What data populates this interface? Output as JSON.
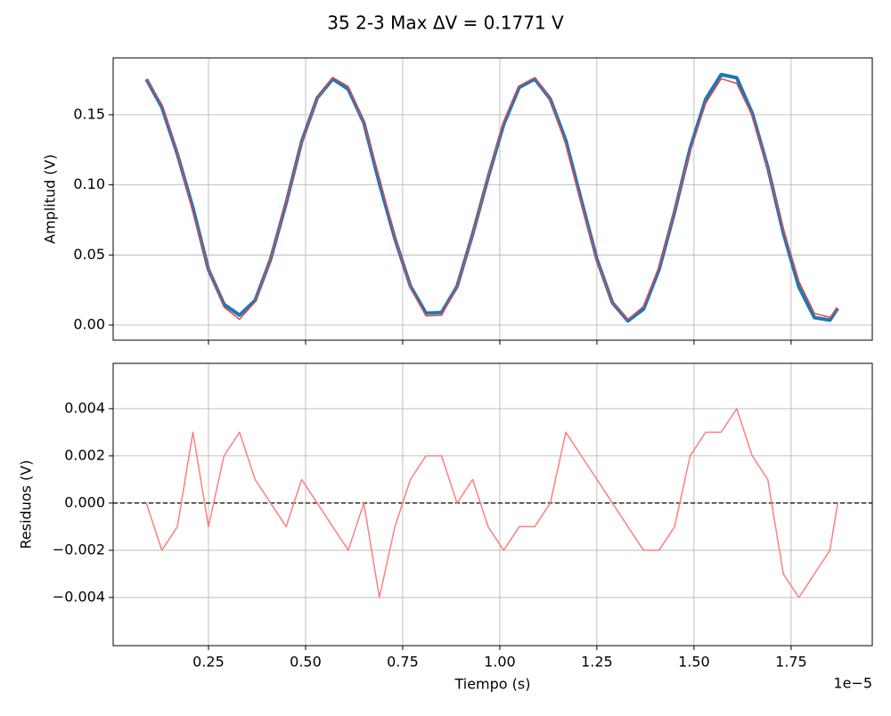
{
  "title": "35 2-3 Max ΔV = 0.1771 V",
  "chart_data": [
    {
      "type": "line",
      "ylabel": "Amplitud (V)",
      "x": [
        0.09,
        0.13,
        0.17,
        0.21,
        0.25,
        0.29,
        0.33,
        0.37,
        0.41,
        0.45,
        0.49,
        0.53,
        0.57,
        0.61,
        0.65,
        0.69,
        0.73,
        0.77,
        0.81,
        0.85,
        0.89,
        0.93,
        0.97,
        1.01,
        1.05,
        1.09,
        1.13,
        1.17,
        1.21,
        1.25,
        1.29,
        1.33,
        1.37,
        1.41,
        1.45,
        1.49,
        1.53,
        1.57,
        1.61,
        1.65,
        1.69,
        1.73,
        1.77,
        1.81,
        1.85,
        1.87
      ],
      "series": [
        {
          "color": "#1f77b4",
          "width": 4,
          "values": [
            0.1754,
            0.1554,
            0.1219,
            0.0835,
            0.0396,
            0.0148,
            0.0071,
            0.0175,
            0.047,
            0.0871,
            0.1309,
            0.162,
            0.1756,
            0.1682,
            0.1443,
            0.1012,
            0.0616,
            0.0277,
            0.0085,
            0.0089,
            0.0276,
            0.0647,
            0.1054,
            0.1432,
            0.1696,
            0.1755,
            0.1613,
            0.1317,
            0.0889,
            0.047,
            0.0159,
            0.003,
            0.0113,
            0.0395,
            0.0807,
            0.126,
            0.1611,
            0.1787,
            0.1764,
            0.1512,
            0.1125,
            0.0657,
            0.0272,
            0.0053,
            0.0035,
            0.012
          ]
        },
        {
          "color": "#e0474c",
          "width": 1.5,
          "values": [
            0.1754,
            0.1574,
            0.1229,
            0.0805,
            0.0406,
            0.0128,
            0.0041,
            0.0165,
            0.047,
            0.0881,
            0.1299,
            0.162,
            0.1766,
            0.1702,
            0.1443,
            0.1052,
            0.0626,
            0.0267,
            0.0065,
            0.0069,
            0.0276,
            0.0637,
            0.1064,
            0.1452,
            0.1706,
            0.1765,
            0.1613,
            0.1287,
            0.0869,
            0.046,
            0.0159,
            0.004,
            0.0133,
            0.0415,
            0.0817,
            0.124,
            0.1581,
            0.1757,
            0.1724,
            0.1492,
            0.1115,
            0.0687,
            0.0312,
            0.0083,
            0.0055,
            0.012
          ]
        }
      ],
      "xlim": [
        0.0046,
        1.959
      ],
      "xticks": [
        0.25,
        0.5,
        0.75,
        1.0,
        1.25,
        1.5,
        1.75
      ],
      "ylim": [
        -0.0108,
        0.1906
      ],
      "yticks": [
        {
          "value": 0,
          "label": "0.00"
        },
        0.05,
        {
          "value": 0.1,
          "label": "0.10"
        },
        0.15
      ],
      "grid": true
    },
    {
      "type": "line",
      "ylabel": "Residuos (V)",
      "xlabel": "Tiempo (s)",
      "x_offset": "1e−5",
      "x": [
        0.09,
        0.13,
        0.17,
        0.21,
        0.25,
        0.29,
        0.33,
        0.37,
        0.41,
        0.45,
        0.49,
        0.53,
        0.57,
        0.61,
        0.65,
        0.69,
        0.73,
        0.77,
        0.81,
        0.85,
        0.89,
        0.93,
        0.97,
        1.01,
        1.05,
        1.09,
        1.13,
        1.17,
        1.21,
        1.25,
        1.29,
        1.33,
        1.37,
        1.41,
        1.45,
        1.49,
        1.53,
        1.57,
        1.61,
        1.65,
        1.69,
        1.73,
        1.77,
        1.81,
        1.85,
        1.87
      ],
      "series": [
        {
          "color": "#ff7f7f",
          "width": 1.5,
          "values": [
            0,
            -0.002,
            -0.001,
            0.003,
            -0.001,
            0.002,
            0.003,
            0.001,
            0,
            -0.001,
            0.001,
            0,
            -0.001,
            -0.002,
            0,
            -0.004,
            -0.001,
            0.001,
            0.002,
            0.002,
            0,
            0.001,
            -0.001,
            -0.002,
            -0.001,
            -0.001,
            0,
            0.003,
            0.002,
            0.001,
            0,
            -0.001,
            -0.002,
            -0.002,
            -0.001,
            0.002,
            0.003,
            0.003,
            0.004,
            0.002,
            0.001,
            -0.003,
            -0.004,
            -0.003,
            -0.002,
            0
          ]
        }
      ],
      "hline": 0,
      "xlim": [
        0.0046,
        1.959
      ],
      "xticks": [
        0.25,
        {
          "value": 0.5,
          "label": "0.50"
        },
        0.75,
        {
          "value": 1.0,
          "label": "1.00"
        },
        {
          "value": 1.25,
          "label": "1.25"
        },
        {
          "value": 1.5,
          "label": "1.50"
        },
        1.75
      ],
      "ylim": [
        -0.00604,
        0.00592
      ],
      "yticks": [
        {
          "value": -0.004,
          "label": "−0.004"
        },
        {
          "value": -0.002,
          "label": "−0.002"
        },
        {
          "value": 0,
          "label": "0.000"
        },
        0.002,
        0.004
      ],
      "grid": true
    }
  ]
}
